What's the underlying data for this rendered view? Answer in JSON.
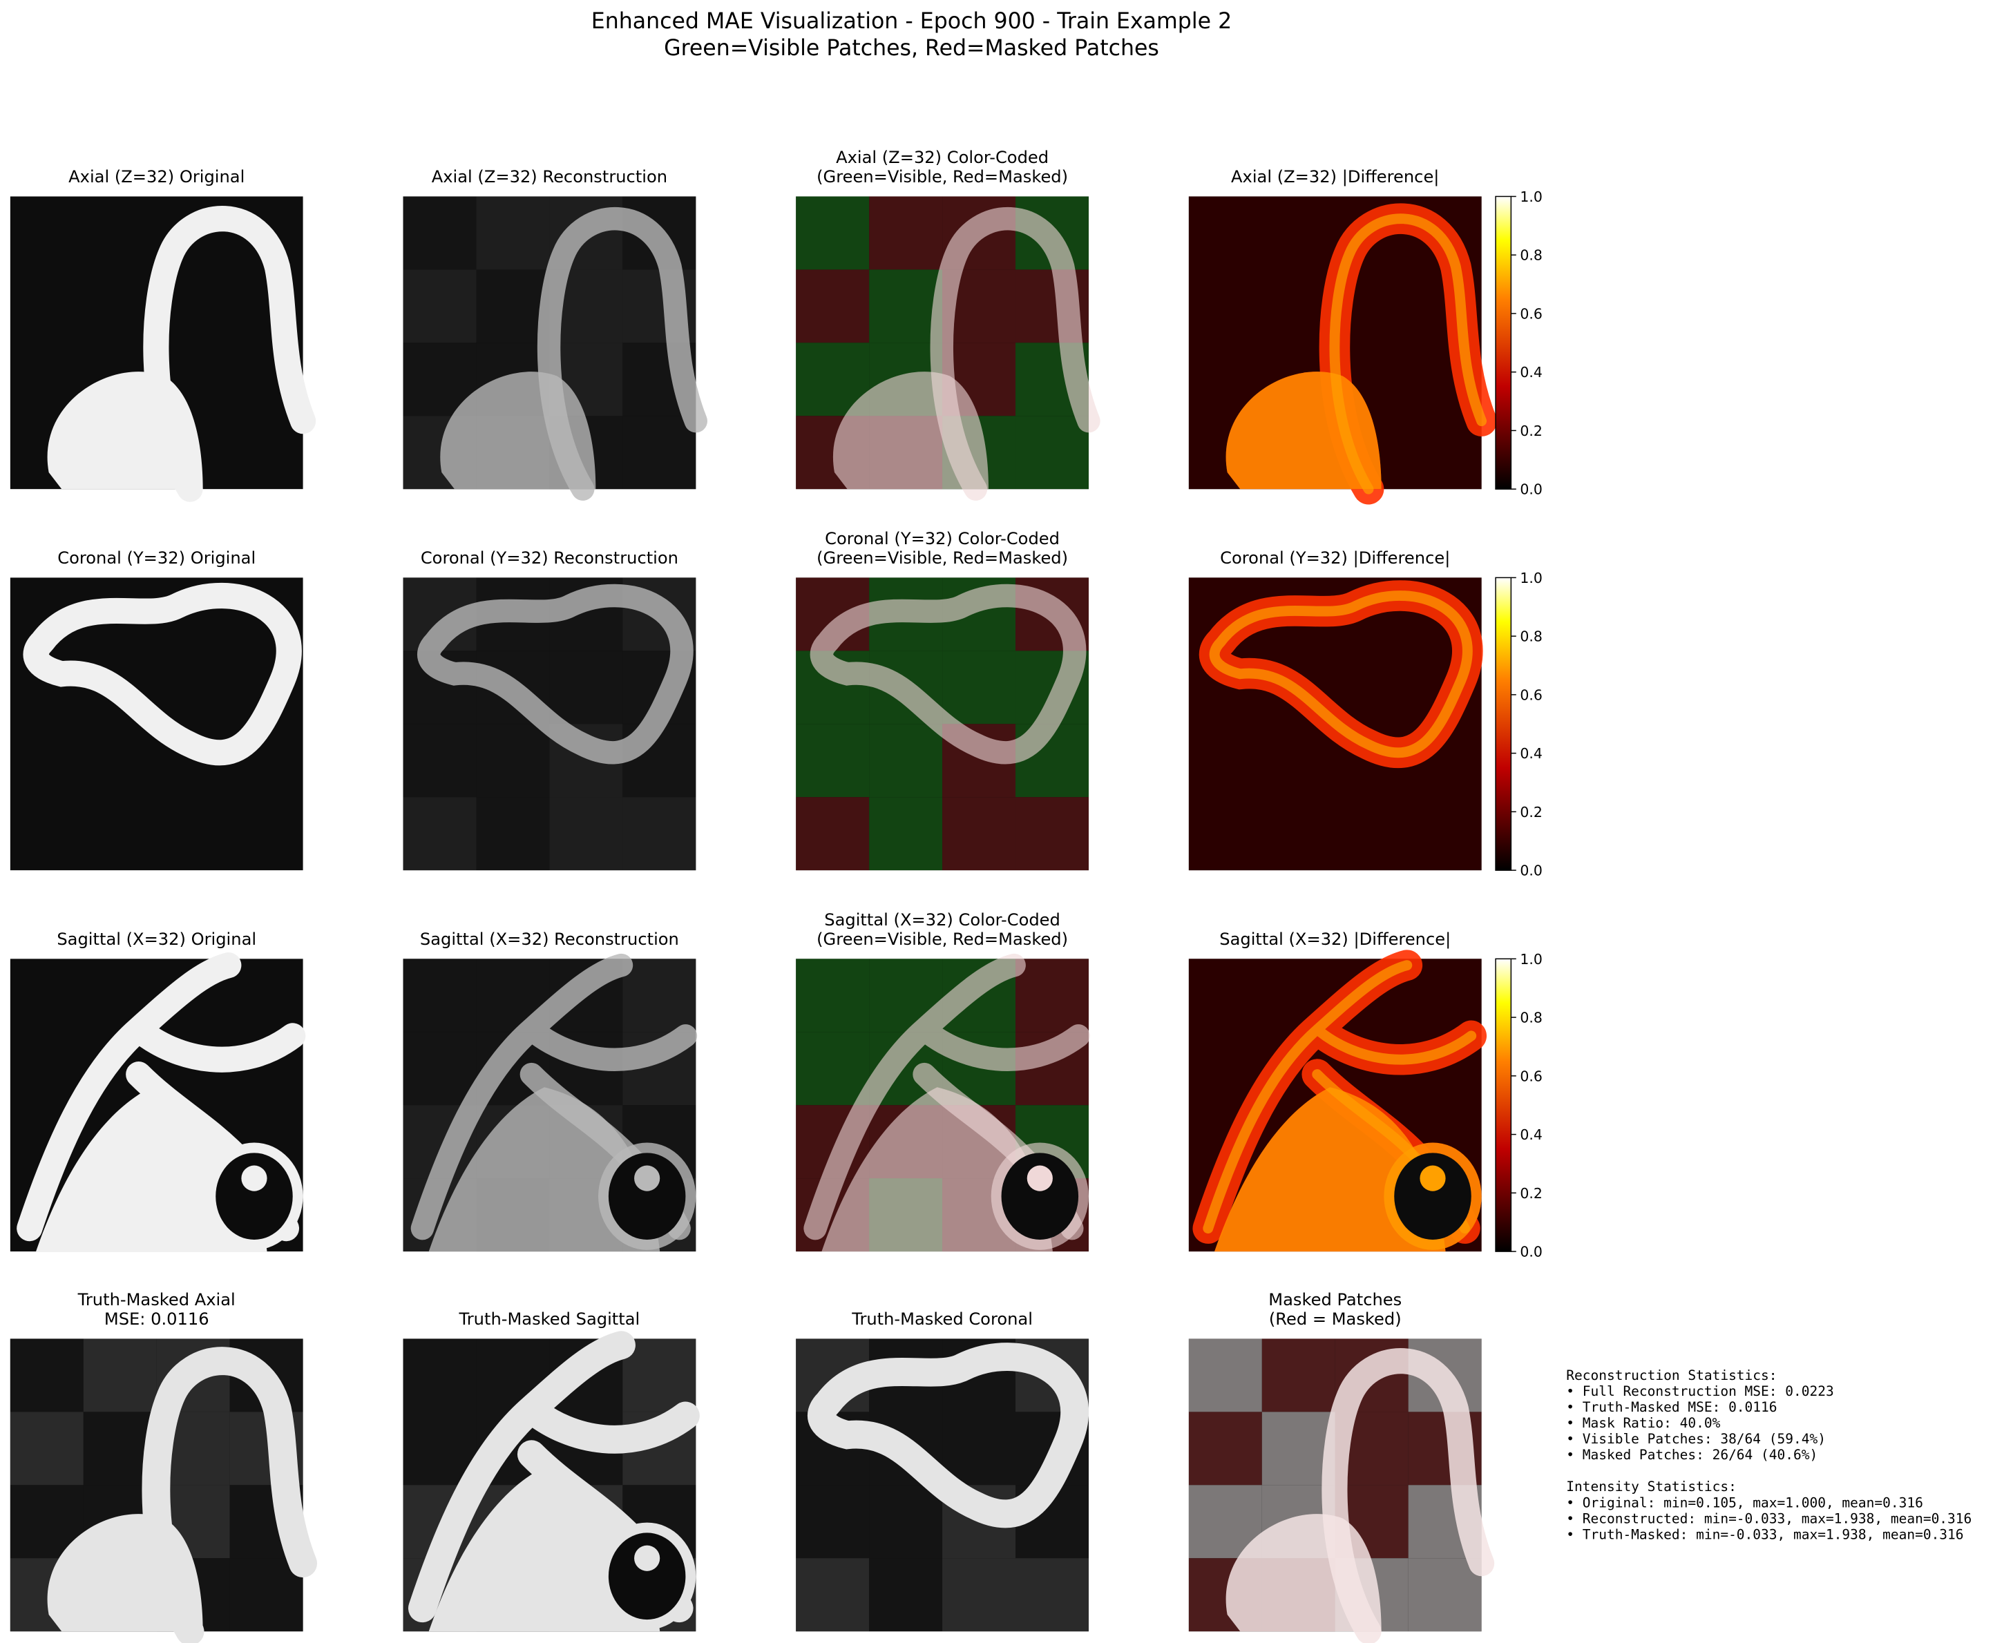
{
  "header": {
    "title": [
      "Enhanced MAE Visualization - Epoch 900 - Train Example 2",
      "Green=Visible Patches, Red=Masked Patches"
    ]
  },
  "panels": [
    [
      [
        "Axial (Z=32) Original"
      ],
      [
        "Axial (Z=32) Reconstruction"
      ],
      [
        "Axial (Z=32) Color-Coded",
        "(Green=Visible, Red=Masked)"
      ],
      [
        "Axial (Z=32) |Difference|"
      ]
    ],
    [
      [
        "Coronal (Y=32) Original"
      ],
      [
        "Coronal (Y=32) Reconstruction"
      ],
      [
        "Coronal (Y=32) Color-Coded",
        "(Green=Visible, Red=Masked)"
      ],
      [
        "Coronal (Y=32) |Difference|"
      ]
    ],
    [
      [
        "Sagittal (X=32) Original"
      ],
      [
        "Sagittal (X=32) Reconstruction"
      ],
      [
        "Sagittal (X=32) Color-Coded",
        "(Green=Visible, Red=Masked)"
      ],
      [
        "Sagittal (X=32) |Difference|"
      ]
    ],
    [
      [
        "Truth-Masked Axial",
        "MSE: 0.0116"
      ],
      [
        "Truth-Masked Sagittal"
      ],
      [
        "Truth-Masked Coronal"
      ],
      [
        "Masked Patches",
        "(Red = Masked)"
      ]
    ]
  ],
  "colorbar": {
    "ylim": [
      0,
      1
    ],
    "yticks": [
      {
        "value": 0,
        "label": "0.0"
      },
      0.2,
      0.4,
      0.6,
      0.8,
      {
        "value": 1,
        "label": "1.0"
      }
    ]
  },
  "stats": [
    "Reconstruction Statistics:",
    "• Full Reconstruction MSE: 0.0223",
    "• Truth-Masked MSE: 0.0116",
    "• Mask Ratio: 40.0%",
    "• Visible Patches: 38/64 (59.4%)",
    "• Masked Patches: 26/64 (40.6%)",
    "",
    "Intensity Statistics:",
    "• Original: min=0.105, max=1.000, mean=0.316",
    "• Reconstructed: min=-0.033, max=1.938, mean=0.316",
    "• Truth-Masked: min=-0.033, max=1.938, mean=0.316"
  ]
}
